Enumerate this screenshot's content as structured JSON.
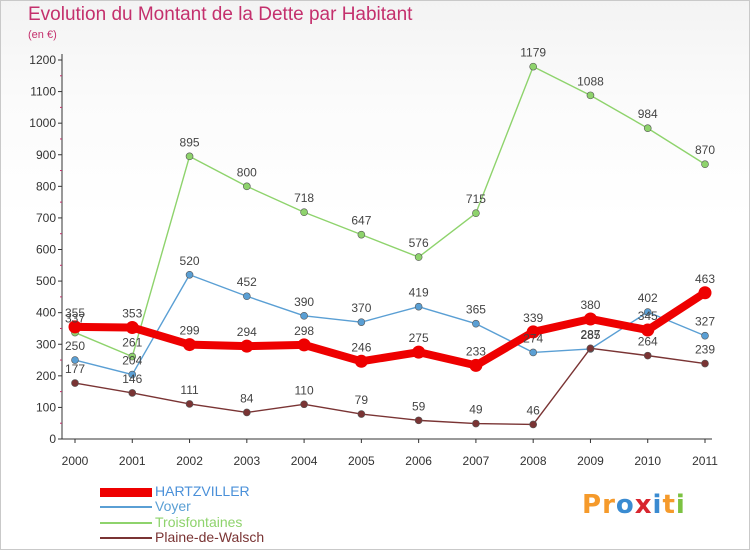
{
  "header": {
    "title": "Evolution du Montant de la Dette par Habitant",
    "subtitle": "(en €)"
  },
  "logo": {
    "text": "Proxiti",
    "letters": [
      "P",
      "r",
      "o",
      "x",
      "i",
      "t",
      "i"
    ],
    "colors": [
      "#f59a2b",
      "#f59a2b",
      "#3a8bd1",
      "#d8262f",
      "#3a8bd1",
      "#f59a2b",
      "#7cc242"
    ]
  },
  "chart_data": {
    "type": "line",
    "title": "Evolution du Montant de la Dette par Habitant",
    "subtitle": "(en €)",
    "xlabel": "",
    "ylabel": "",
    "x": [
      "2000",
      "2001",
      "2002",
      "2003",
      "2004",
      "2005",
      "2006",
      "2007",
      "2008",
      "2009",
      "2010",
      "2011"
    ],
    "ylim": [
      0,
      1200
    ],
    "yticks": [
      0,
      100,
      200,
      300,
      400,
      500,
      600,
      700,
      800,
      900,
      1000,
      1100,
      1200
    ],
    "grid": false,
    "legend_position": "bottom-left",
    "series": [
      {
        "name": "HARTZVILLER",
        "color": "#ee0000",
        "values": [
          355,
          353,
          299,
          294,
          298,
          246,
          275,
          233,
          339,
          380,
          345,
          463
        ]
      },
      {
        "name": "Voyer",
        "color": "#5a9fd4",
        "values": [
          250,
          204,
          520,
          452,
          390,
          370,
          419,
          365,
          274,
          285,
          402,
          327
        ]
      },
      {
        "name": "Troisfontaines",
        "color": "#8ed36c",
        "values": [
          337,
          261,
          895,
          800,
          718,
          647,
          576,
          715,
          1179,
          1088,
          984,
          870
        ]
      },
      {
        "name": "Plaine-de-Walsch",
        "color": "#7a3434",
        "values": [
          177,
          146,
          111,
          84,
          110,
          79,
          59,
          49,
          46,
          287,
          264,
          239
        ]
      }
    ]
  }
}
